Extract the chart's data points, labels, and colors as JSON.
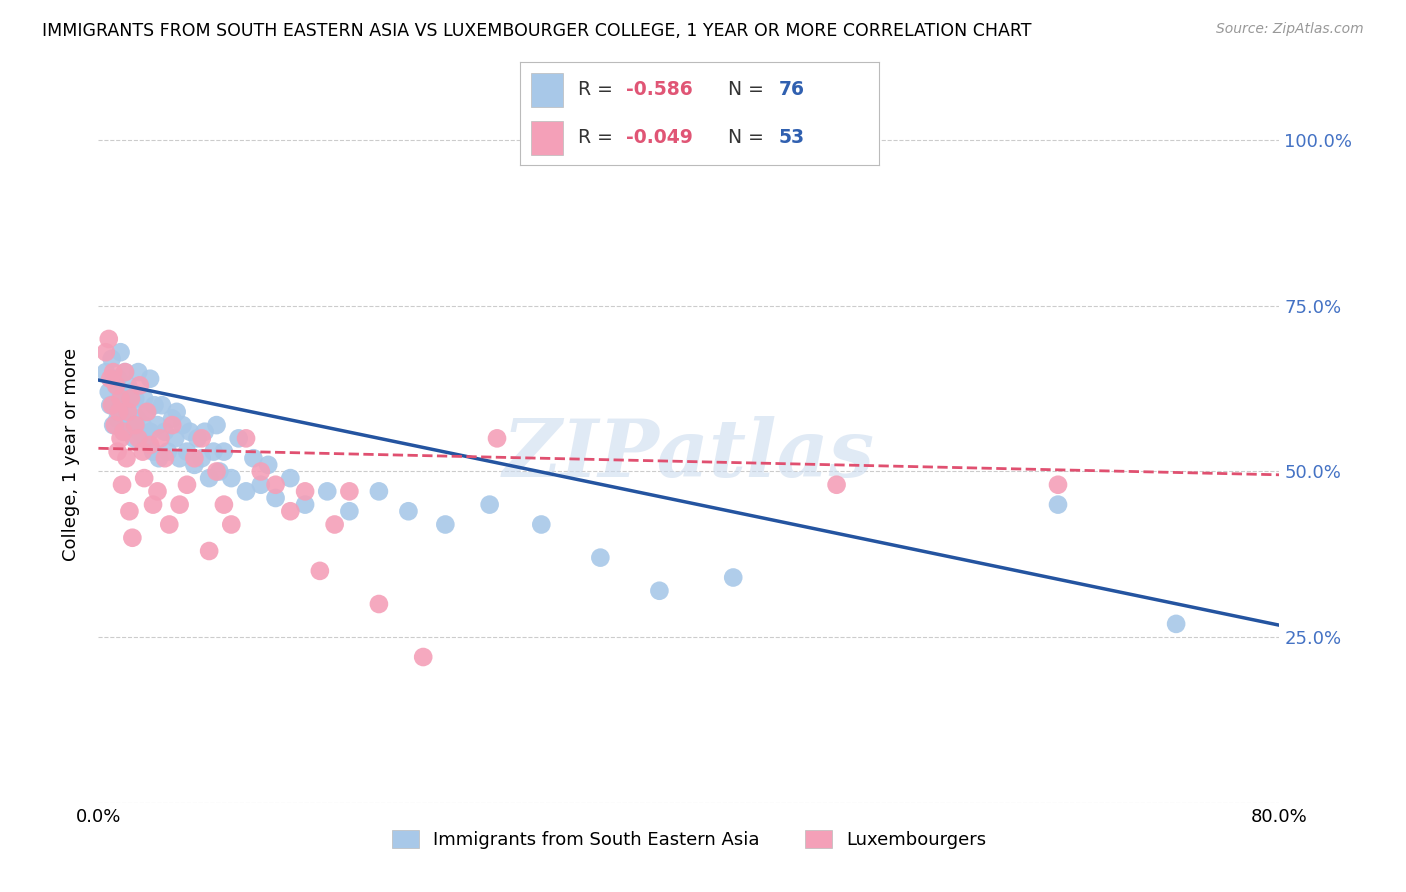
{
  "title": "IMMIGRANTS FROM SOUTH EASTERN ASIA VS LUXEMBOURGER COLLEGE, 1 YEAR OR MORE CORRELATION CHART",
  "source": "Source: ZipAtlas.com",
  "ylabel": "College, 1 year or more",
  "x_min": 0.0,
  "x_max": 0.8,
  "y_min": 0.0,
  "y_max": 1.05,
  "x_ticks": [
    0.0,
    0.1,
    0.2,
    0.3,
    0.4,
    0.5,
    0.6,
    0.7,
    0.8
  ],
  "x_tick_labels": [
    "0.0%",
    "",
    "",
    "",
    "",
    "",
    "",
    "",
    "80.0%"
  ],
  "y_ticks": [
    0.0,
    0.25,
    0.5,
    0.75,
    1.0
  ],
  "y_tick_labels_right": [
    "",
    "25.0%",
    "50.0%",
    "75.0%",
    "100.0%"
  ],
  "legend_bottom_labels": [
    "Immigrants from South Eastern Asia",
    "Luxembourgers"
  ],
  "blue_r_val": "-0.586",
  "blue_n_val": "76",
  "pink_r_val": "-0.049",
  "pink_n_val": "53",
  "blue_color": "#a8c8e8",
  "blue_line_color": "#2454a0",
  "pink_color": "#f4a0b8",
  "pink_line_color": "#e05070",
  "watermark": "ZIPatlas",
  "blue_points_x": [
    0.005,
    0.007,
    0.008,
    0.009,
    0.01,
    0.01,
    0.012,
    0.013,
    0.013,
    0.015,
    0.015,
    0.016,
    0.017,
    0.017,
    0.018,
    0.018,
    0.02,
    0.02,
    0.022,
    0.022,
    0.023,
    0.024,
    0.025,
    0.026,
    0.027,
    0.028,
    0.03,
    0.031,
    0.032,
    0.033,
    0.035,
    0.035,
    0.037,
    0.038,
    0.04,
    0.041,
    0.043,
    0.045,
    0.047,
    0.05,
    0.052,
    0.053,
    0.055,
    0.057,
    0.06,
    0.062,
    0.065,
    0.067,
    0.07,
    0.072,
    0.075,
    0.078,
    0.08,
    0.082,
    0.085,
    0.09,
    0.095,
    0.1,
    0.105,
    0.11,
    0.115,
    0.12,
    0.13,
    0.14,
    0.155,
    0.17,
    0.19,
    0.21,
    0.235,
    0.265,
    0.3,
    0.34,
    0.38,
    0.43,
    0.65,
    0.73
  ],
  "blue_points_y": [
    0.65,
    0.62,
    0.6,
    0.67,
    0.6,
    0.57,
    0.63,
    0.58,
    0.64,
    0.62,
    0.68,
    0.59,
    0.56,
    0.61,
    0.65,
    0.58,
    0.6,
    0.63,
    0.57,
    0.62,
    0.59,
    0.55,
    0.61,
    0.58,
    0.65,
    0.56,
    0.57,
    0.61,
    0.55,
    0.59,
    0.64,
    0.56,
    0.53,
    0.6,
    0.57,
    0.52,
    0.6,
    0.56,
    0.53,
    0.58,
    0.55,
    0.59,
    0.52,
    0.57,
    0.53,
    0.56,
    0.51,
    0.55,
    0.52,
    0.56,
    0.49,
    0.53,
    0.57,
    0.5,
    0.53,
    0.49,
    0.55,
    0.47,
    0.52,
    0.48,
    0.51,
    0.46,
    0.49,
    0.45,
    0.47,
    0.44,
    0.47,
    0.44,
    0.42,
    0.45,
    0.42,
    0.37,
    0.32,
    0.34,
    0.45,
    0.27
  ],
  "pink_points_x": [
    0.005,
    0.007,
    0.008,
    0.009,
    0.01,
    0.011,
    0.012,
    0.013,
    0.014,
    0.015,
    0.015,
    0.016,
    0.017,
    0.018,
    0.019,
    0.02,
    0.021,
    0.022,
    0.023,
    0.025,
    0.027,
    0.028,
    0.03,
    0.031,
    0.033,
    0.035,
    0.037,
    0.04,
    0.042,
    0.045,
    0.048,
    0.05,
    0.055,
    0.06,
    0.065,
    0.07,
    0.075,
    0.08,
    0.085,
    0.09,
    0.1,
    0.11,
    0.12,
    0.13,
    0.14,
    0.15,
    0.16,
    0.17,
    0.19,
    0.22,
    0.27,
    0.5,
    0.65
  ],
  "pink_points_y": [
    0.68,
    0.7,
    0.64,
    0.6,
    0.65,
    0.57,
    0.63,
    0.53,
    0.59,
    0.55,
    0.61,
    0.48,
    0.56,
    0.65,
    0.52,
    0.59,
    0.44,
    0.61,
    0.4,
    0.57,
    0.55,
    0.63,
    0.53,
    0.49,
    0.59,
    0.54,
    0.45,
    0.47,
    0.55,
    0.52,
    0.42,
    0.57,
    0.45,
    0.48,
    0.52,
    0.55,
    0.38,
    0.5,
    0.45,
    0.42,
    0.55,
    0.5,
    0.48,
    0.44,
    0.47,
    0.35,
    0.42,
    0.47,
    0.3,
    0.22,
    0.55,
    0.48,
    0.48
  ],
  "blue_trendline": {
    "x_start": 0.0,
    "y_start": 0.638,
    "x_end": 0.8,
    "y_end": 0.268
  },
  "pink_trendline": {
    "x_start": 0.0,
    "y_start": 0.535,
    "x_end": 0.8,
    "y_end": 0.495
  },
  "grid_color": "#cccccc",
  "background_color": "#ffffff"
}
